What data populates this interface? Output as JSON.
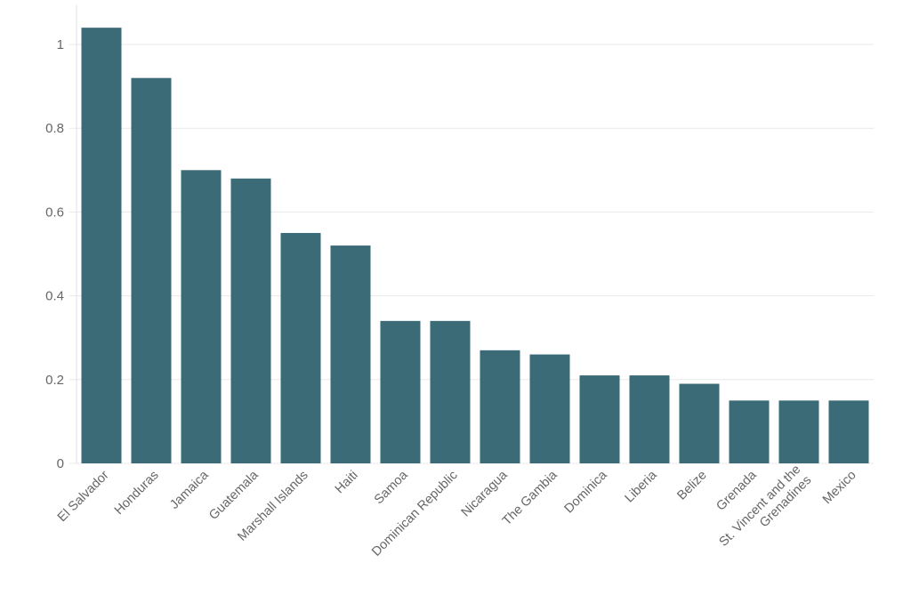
{
  "chart_data": {
    "type": "bar",
    "title": "",
    "xlabel": "",
    "ylabel": "",
    "ylim": [
      0,
      1.1
    ],
    "yticks": [
      0,
      0.2,
      0.4,
      0.6,
      0.8,
      1
    ],
    "ytick_labels": [
      "0",
      "0.2",
      "0.4",
      "0.6",
      "0.8",
      "1"
    ],
    "grid": true,
    "color": "#3a6b77",
    "categories": [
      "El Salvador",
      "Honduras",
      "Jamaica",
      "Guatemala",
      "Marshall Islands",
      "Haiti",
      "Samoa",
      "Dominican Republic",
      "Nicaragua",
      "The Gambia",
      "Dominica",
      "Liberia",
      "Belize",
      "Grenada",
      "St. Vincent and the Grenadines",
      "Mexico"
    ],
    "category_lines": [
      [
        "El Salvador"
      ],
      [
        "Honduras"
      ],
      [
        "Jamaica"
      ],
      [
        "Guatemala"
      ],
      [
        "Marshall Islands"
      ],
      [
        "Haiti"
      ],
      [
        "Samoa"
      ],
      [
        "Dominican Republic"
      ],
      [
        "Nicaragua"
      ],
      [
        "The Gambia"
      ],
      [
        "Dominica"
      ],
      [
        "Liberia"
      ],
      [
        "Belize"
      ],
      [
        "Grenada"
      ],
      [
        "St. Vincent and the",
        "Grenadines"
      ],
      [
        "Mexico"
      ]
    ],
    "values": [
      1.04,
      0.92,
      0.7,
      0.68,
      0.55,
      0.52,
      0.34,
      0.34,
      0.27,
      0.26,
      0.21,
      0.21,
      0.19,
      0.15,
      0.15,
      0.15
    ]
  }
}
